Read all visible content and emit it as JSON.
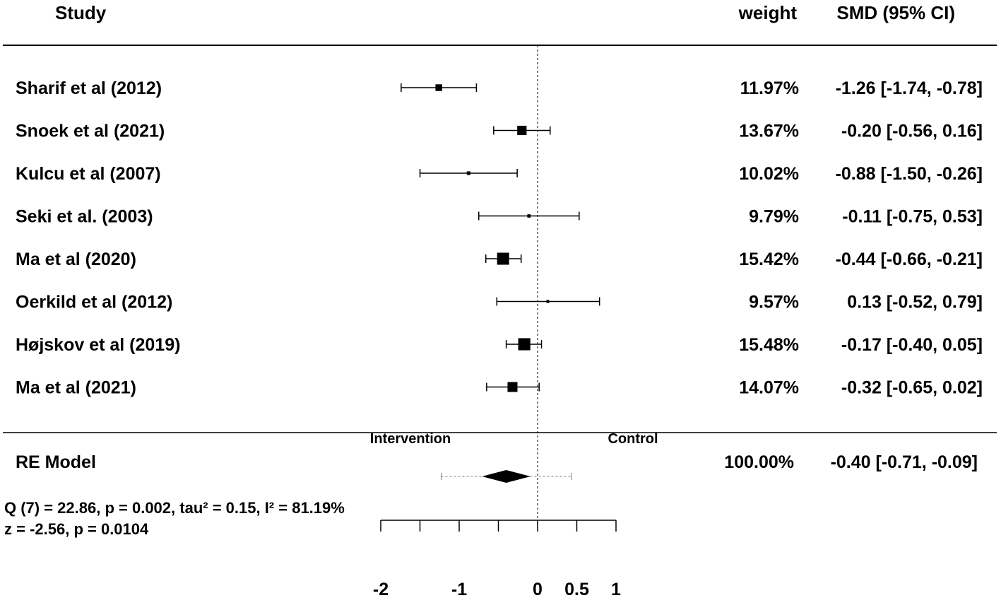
{
  "headers": {
    "study": "Study",
    "weight": "weight",
    "effect": "SMD (95% CI)"
  },
  "chart_data": {
    "type": "forest",
    "measure": "SMD",
    "studies": [
      {
        "label": "Sharif  et al (2012)",
        "weight": "11.97%",
        "ci_text": "-1.26 [-1.74, -0.78]",
        "est": -1.26,
        "lo": -1.74,
        "hi": -0.78,
        "w": 11.97
      },
      {
        "label": "Snoek et al (2021)",
        "weight": "13.67%",
        "ci_text": "-0.20 [-0.56,  0.16]",
        "est": -0.2,
        "lo": -0.56,
        "hi": 0.16,
        "w": 13.67
      },
      {
        "label": "Kulcu et al (2007)",
        "weight": "10.02%",
        "ci_text": "-0.88 [-1.50, -0.26]",
        "est": -0.88,
        "lo": -1.5,
        "hi": -0.26,
        "w": 10.02
      },
      {
        "label": "Seki et al. (2003)",
        "weight": "9.79%",
        "ci_text": "-0.11 [-0.75,  0.53]",
        "est": -0.11,
        "lo": -0.75,
        "hi": 0.53,
        "w": 9.79
      },
      {
        "label": "Ma et al (2020)",
        "weight": "15.42%",
        "ci_text": "-0.44 [-0.66, -0.21]",
        "est": -0.44,
        "lo": -0.66,
        "hi": -0.21,
        "w": 15.42
      },
      {
        "label": "Oerkild et al (2012)",
        "weight": "9.57%",
        "ci_text": "0.13 [-0.52,  0.79]",
        "est": 0.13,
        "lo": -0.52,
        "hi": 0.79,
        "w": 9.57
      },
      {
        "label": "Højskov et al (2019)",
        "weight": "15.48%",
        "ci_text": "-0.17 [-0.40,  0.05]",
        "est": -0.17,
        "lo": -0.4,
        "hi": 0.05,
        "w": 15.48
      },
      {
        "label": "Ma et al (2021)",
        "weight": "14.07%",
        "ci_text": "-0.32 [-0.65,  0.02]",
        "est": -0.32,
        "lo": -0.65,
        "hi": 0.02,
        "w": 14.07
      }
    ],
    "summary": {
      "label": "RE Model",
      "weight": "100.00%",
      "ci_text": "-0.40 [-0.71, -0.09]",
      "est": -0.4,
      "lo": -0.71,
      "hi": -0.09,
      "pi_lo": -1.23,
      "pi_hi": 0.43
    },
    "side_labels": {
      "left": "Intervention",
      "right": "Control"
    },
    "stats": {
      "line1": "Q (7) = 22.86, p = 0.002, tau² = 0.15, I² = 81.19%",
      "line2": "z = -2.56, p = 0.0104"
    },
    "x_ticks": [
      -2,
      -1,
      0,
      0.5,
      1
    ],
    "x_tick_labels": [
      "-2",
      "-1",
      "0",
      "0.5",
      "1"
    ],
    "xlim": [
      -2,
      1
    ],
    "reference_line": 0
  }
}
